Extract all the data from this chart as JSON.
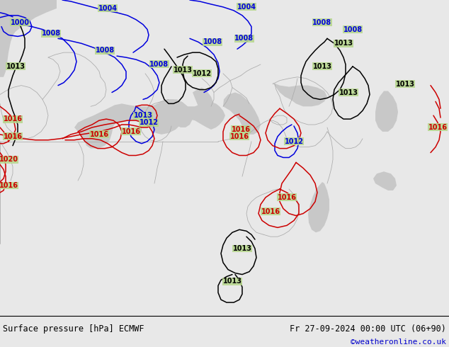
{
  "title_left": "Surface pressure [hPa] ECMWF",
  "title_right": "Fr 27-09-2024 00:00 UTC (06+90)",
  "credit": "©weatheronline.co.uk",
  "bg_land_color": "#b5d68a",
  "bg_sea_color": "#c8c8c8",
  "border_color": "#aaaaaa",
  "contour_blue_color": "#0000dd",
  "contour_black_color": "#000000",
  "contour_red_color": "#cc0000",
  "label_fontsize": 7.0,
  "footer_fontsize": 8.5,
  "credit_color": "#0000cc",
  "footer_bg": "#e8e8e8",
  "fig_width": 6.34,
  "fig_height": 4.9,
  "dpi": 100
}
